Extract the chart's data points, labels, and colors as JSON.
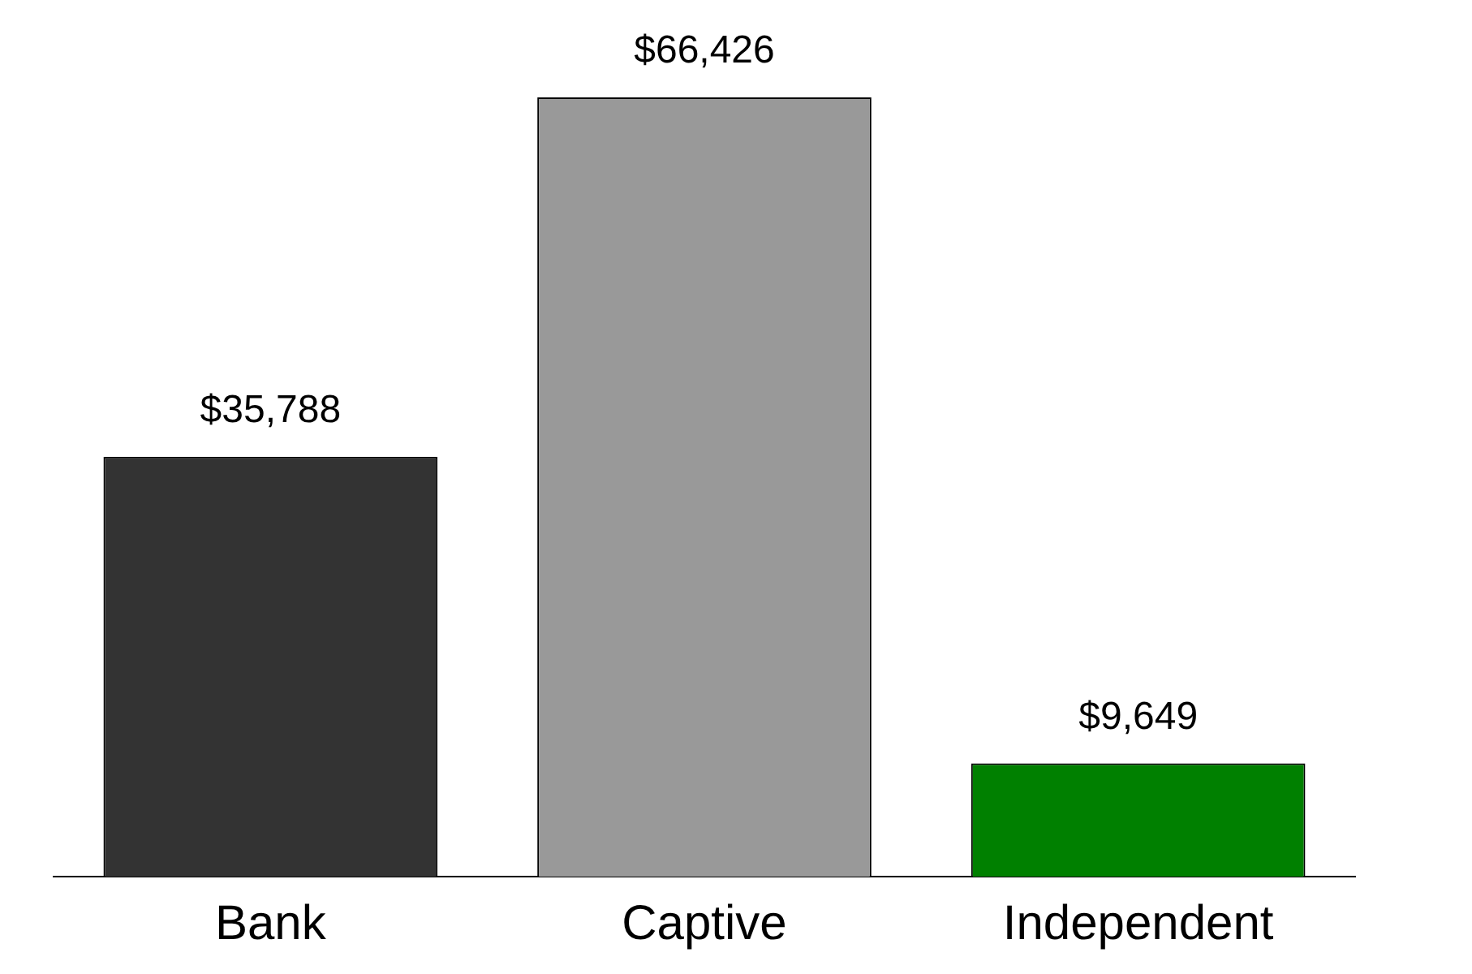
{
  "chart_data": {
    "type": "bar",
    "categories": [
      "Bank",
      "Captive",
      "Independent"
    ],
    "values": [
      35788,
      66426,
      9649
    ],
    "colors": [
      "#333333",
      "#999999",
      "#008000"
    ],
    "value_labels": [
      "$35,788",
      "$66,426",
      "$9,649"
    ],
    "grid": false,
    "legend": false
  }
}
